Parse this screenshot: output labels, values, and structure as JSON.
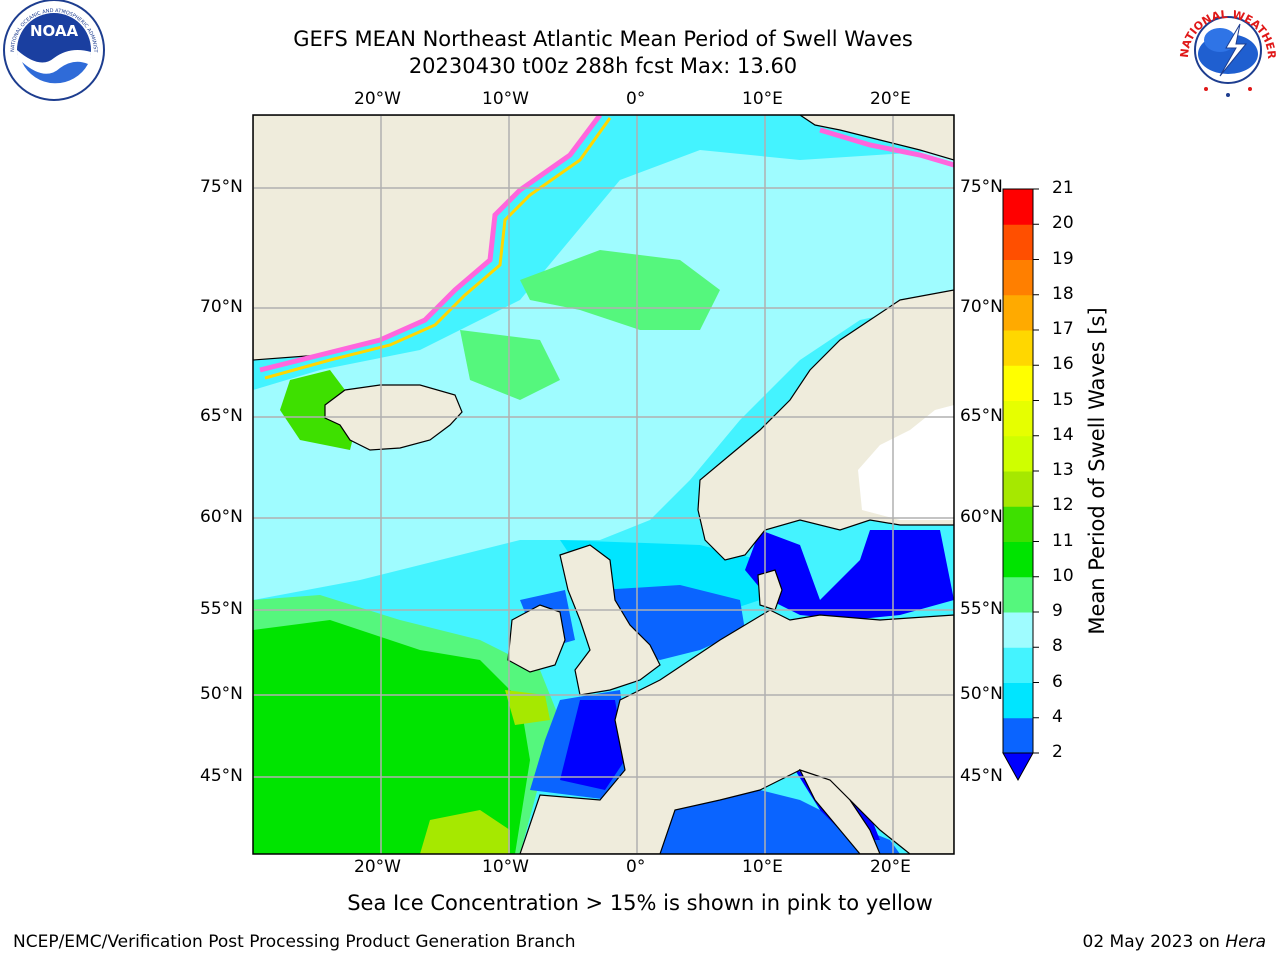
{
  "title": {
    "line1": "GEFS MEAN Northeast Atlantic Mean Period of Swell Waves",
    "line2": "20230430 t00z 288h fcst   Max: 13.60"
  },
  "map": {
    "lon_labels": [
      "20°W",
      "10°W",
      "0°",
      "10°E",
      "20°E"
    ],
    "lat_labels": [
      "75°N",
      "70°N",
      "65°N",
      "60°N",
      "55°N",
      "50°N",
      "45°N"
    ],
    "land_color": "#efecdc",
    "ice_color": "#ff66dd"
  },
  "colorbar": {
    "title": "Mean Period of Swell Waves [s]",
    "ticks": [
      "2",
      "4",
      "6",
      "8",
      "9",
      "10",
      "11",
      "12",
      "13",
      "14",
      "15",
      "16",
      "17",
      "18",
      "19",
      "20",
      "21"
    ],
    "colors": [
      "#0a64ff",
      "#00e5ff",
      "#44f3ff",
      "#9ffcff",
      "#55f77d",
      "#00e400",
      "#3ee000",
      "#a6e800",
      "#cfff00",
      "#e6ff00",
      "#ffff00",
      "#ffd700",
      "#ffaa00",
      "#ff7f00",
      "#ff4f00",
      "#ff0000"
    ],
    "under_color": "#0000ff"
  },
  "caption": "Sea Ice Concentration > 15% is shown in pink to yellow",
  "footer": {
    "left": "NCEP/EMC/Verification Post Processing Product Generation Branch",
    "right_date": "02 May 2023 on ",
    "right_host": "Hera"
  },
  "logos": {
    "noaa": "NOAA",
    "noaa_ring": "NATIONAL OCEANIC AND ATMOSPHERIC ADMINISTRATION · U.S. DEPARTMENT OF COMMERCE",
    "nws_ring": "NATIONAL WEATHER SERVICE"
  }
}
